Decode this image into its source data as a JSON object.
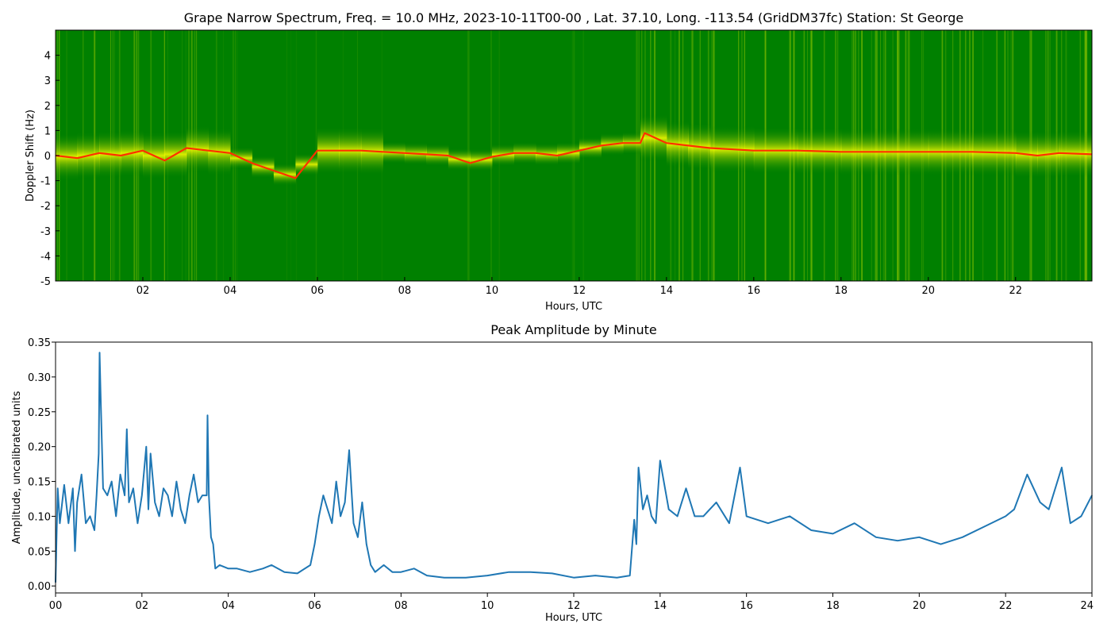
{
  "chart_data": [
    {
      "type": "heatmap",
      "title": "Grape Narrow Spectrum, Freq. = 10.0 MHz, 2023-10-11T00-00 , Lat.  37.10, Long. -113.54 (GridDM37fc) Station: St George",
      "xlabel": "Hours, UTC",
      "ylabel": "Doppler Shift (Hz)",
      "xlim": [
        0,
        23.75
      ],
      "ylim": [
        -5,
        5
      ],
      "xticks": [
        2,
        4,
        6,
        8,
        10,
        12,
        14,
        16,
        18,
        20,
        22
      ],
      "xtick_labels": [
        "02",
        "04",
        "06",
        "08",
        "10",
        "12",
        "14",
        "16",
        "18",
        "20",
        "22"
      ],
      "yticks": [
        -5,
        -4,
        -3,
        -2,
        -1,
        0,
        1,
        2,
        3,
        4
      ],
      "ytick_labels": [
        "-5",
        "-4",
        "-3",
        "-2",
        "-1",
        "0",
        "1",
        "2",
        "3",
        "4"
      ],
      "grid": false,
      "colormap": {
        "background": "#008000",
        "low": "#d4e600",
        "mid": "#ffff00",
        "high": "#ff2000"
      },
      "doppler_trace": {
        "x": [
          0,
          0.5,
          1,
          1.5,
          2,
          2.5,
          3,
          3.5,
          4,
          4.5,
          5,
          5.5,
          6,
          6.5,
          7,
          7.5,
          8,
          8.5,
          9,
          9.5,
          10,
          10.5,
          11,
          11.5,
          12,
          12.5,
          13,
          13.4,
          13.5,
          14,
          14.5,
          15,
          16,
          17,
          18,
          19,
          20,
          21,
          22,
          22.5,
          23,
          23.75
        ],
        "y": [
          0.0,
          -0.1,
          0.1,
          0.0,
          0.2,
          -0.2,
          0.3,
          0.2,
          0.1,
          -0.3,
          -0.6,
          -0.9,
          0.2,
          0.2,
          0.2,
          0.15,
          0.1,
          0.05,
          0.0,
          -0.3,
          -0.05,
          0.1,
          0.1,
          0.0,
          0.2,
          0.4,
          0.5,
          0.5,
          0.9,
          0.5,
          0.4,
          0.3,
          0.2,
          0.2,
          0.15,
          0.15,
          0.15,
          0.15,
          0.1,
          0.0,
          0.1,
          0.05
        ]
      }
    },
    {
      "type": "line",
      "title": "Peak Amplitude by Minute",
      "xlabel": "Hours, UTC",
      "ylabel": "Amplitude, uncalibrated units",
      "xlim": [
        0,
        24
      ],
      "ylim": [
        -0.01,
        0.35
      ],
      "xticks": [
        0,
        2,
        4,
        6,
        8,
        10,
        12,
        14,
        16,
        18,
        20,
        22,
        24
      ],
      "xtick_labels": [
        "00",
        "02",
        "04",
        "06",
        "08",
        "10",
        "12",
        "14",
        "16",
        "18",
        "20",
        "22",
        "24"
      ],
      "yticks": [
        0.0,
        0.05,
        0.1,
        0.15,
        0.2,
        0.25,
        0.3,
        0.35
      ],
      "ytick_labels": [
        "0.00",
        "0.05",
        "0.10",
        "0.15",
        "0.20",
        "0.25",
        "0.30",
        "0.35"
      ],
      "grid": false,
      "line_color": "#1f77b4",
      "x": [
        0,
        0.05,
        0.1,
        0.2,
        0.3,
        0.4,
        0.45,
        0.5,
        0.6,
        0.7,
        0.8,
        0.9,
        0.95,
        1.0,
        1.02,
        1.05,
        1.1,
        1.2,
        1.3,
        1.4,
        1.5,
        1.6,
        1.65,
        1.7,
        1.8,
        1.9,
        2.0,
        2.1,
        2.15,
        2.2,
        2.3,
        2.4,
        2.5,
        2.6,
        2.7,
        2.8,
        2.9,
        3.0,
        3.1,
        3.2,
        3.3,
        3.4,
        3.5,
        3.52,
        3.55,
        3.6,
        3.65,
        3.7,
        3.8,
        4.0,
        4.2,
        4.5,
        4.8,
        5.0,
        5.3,
        5.6,
        5.9,
        6.0,
        6.1,
        6.2,
        6.3,
        6.4,
        6.5,
        6.6,
        6.7,
        6.8,
        6.85,
        6.9,
        7.0,
        7.1,
        7.2,
        7.3,
        7.4,
        7.6,
        7.8,
        8.0,
        8.3,
        8.6,
        9.0,
        9.5,
        10.0,
        10.5,
        11.0,
        11.5,
        12.0,
        12.5,
        13.0,
        13.3,
        13.4,
        13.45,
        13.5,
        13.6,
        13.7,
        13.8,
        13.9,
        14.0,
        14.2,
        14.4,
        14.6,
        14.8,
        15.0,
        15.3,
        15.6,
        15.85,
        16.0,
        16.5,
        17.0,
        17.5,
        18.0,
        18.5,
        19.0,
        19.5,
        20.0,
        20.5,
        21.0,
        21.5,
        22.0,
        22.2,
        22.5,
        22.8,
        23.0,
        23.3,
        23.5,
        23.75,
        24.0
      ],
      "y": [
        0.005,
        0.14,
        0.09,
        0.145,
        0.09,
        0.14,
        0.05,
        0.12,
        0.16,
        0.09,
        0.1,
        0.08,
        0.13,
        0.19,
        0.335,
        0.26,
        0.14,
        0.13,
        0.15,
        0.1,
        0.16,
        0.13,
        0.225,
        0.12,
        0.14,
        0.09,
        0.13,
        0.2,
        0.11,
        0.19,
        0.12,
        0.1,
        0.14,
        0.13,
        0.1,
        0.15,
        0.11,
        0.09,
        0.13,
        0.16,
        0.12,
        0.13,
        0.13,
        0.245,
        0.13,
        0.07,
        0.06,
        0.025,
        0.03,
        0.025,
        0.025,
        0.02,
        0.025,
        0.03,
        0.02,
        0.018,
        0.03,
        0.06,
        0.1,
        0.13,
        0.11,
        0.09,
        0.15,
        0.1,
        0.12,
        0.195,
        0.14,
        0.09,
        0.07,
        0.12,
        0.06,
        0.03,
        0.02,
        0.03,
        0.02,
        0.02,
        0.025,
        0.015,
        0.012,
        0.012,
        0.015,
        0.02,
        0.02,
        0.018,
        0.012,
        0.015,
        0.012,
        0.015,
        0.095,
        0.06,
        0.17,
        0.11,
        0.13,
        0.1,
        0.09,
        0.18,
        0.11,
        0.1,
        0.14,
        0.1,
        0.1,
        0.12,
        0.09,
        0.17,
        0.1,
        0.09,
        0.1,
        0.08,
        0.075,
        0.09,
        0.07,
        0.065,
        0.07,
        0.06,
        0.07,
        0.085,
        0.1,
        0.11,
        0.16,
        0.12,
        0.11,
        0.17,
        0.09,
        0.1,
        0.13
      ]
    }
  ]
}
